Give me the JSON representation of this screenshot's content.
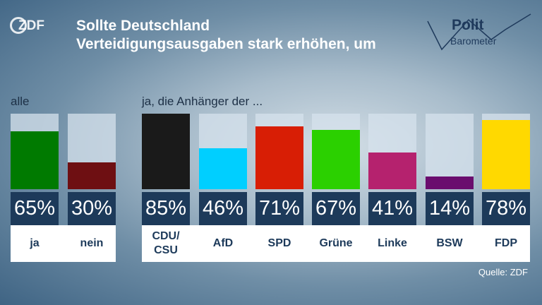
{
  "broadcaster_logo": "ZDF",
  "title_line1": "Sollte Deutschland",
  "title_line2": "Verteidigungsausgaben stark erhöhen, um",
  "pb_logo": {
    "line1": "Polit",
    "line2": "Barometer"
  },
  "source": "Quelle: ZDF",
  "chart_data": {
    "type": "bar",
    "groups": [
      {
        "label": "alle",
        "categories": [
          "ja",
          "nein"
        ]
      },
      {
        "label": "ja, die Anhänger der ...",
        "categories": [
          "CDU/\nCSU",
          "AfD",
          "SPD",
          "Grüne",
          "Linke",
          "BSW",
          "FDP"
        ]
      }
    ],
    "categories": [
      "ja",
      "nein",
      "CDU/\nCSU",
      "AfD",
      "SPD",
      "Grüne",
      "Linke",
      "BSW",
      "FDP"
    ],
    "values": [
      65,
      30,
      85,
      46,
      71,
      67,
      41,
      14,
      78
    ],
    "value_labels": [
      "65%",
      "30%",
      "85%",
      "46%",
      "71%",
      "67%",
      "41%",
      "14%",
      "78%"
    ],
    "colors": [
      "#007a00",
      "#6e0f12",
      "#1a1a1a",
      "#00cfff",
      "#d81e05",
      "#2bd000",
      "#b5226e",
      "#6a0d6e",
      "#ffd900"
    ],
    "ylim": [
      0,
      85
    ]
  }
}
